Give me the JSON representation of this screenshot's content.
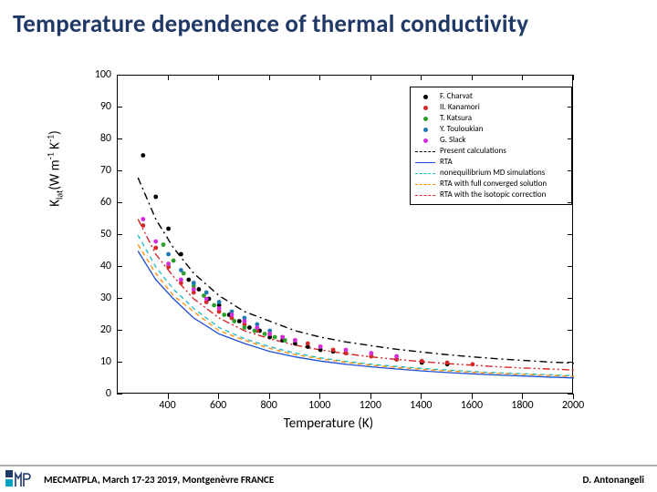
{
  "title": "Temperature dependence of thermal conductivity",
  "footer": {
    "left": "MECMATPLA, March 17-23 2019, Montgenèvre FRANCE",
    "right": "D. Antonangeli"
  },
  "chart": {
    "type": "scatter-line",
    "xlabel": "Temperature (K)",
    "ylabel_html": "K<sub>lat</sub>(W m<sup>-1</sup> K<sup>-1</sup>)",
    "xlim": [
      200,
      2000
    ],
    "ylim": [
      0,
      100
    ],
    "xticks": [
      400,
      600,
      800,
      1000,
      1200,
      1400,
      1600,
      1800,
      2000
    ],
    "yticks": [
      0,
      10,
      20,
      30,
      40,
      50,
      60,
      70,
      80,
      90,
      100
    ],
    "background": "#ffffff",
    "axis_color": "#000000",
    "tick_fontsize": 12,
    "label_fontsize": 15,
    "legend": {
      "items": [
        {
          "type": "scatter",
          "label": "F. Charvat",
          "color": "#000000"
        },
        {
          "type": "scatter",
          "label": "II. Kanamori",
          "color": "#d62728"
        },
        {
          "type": "scatter",
          "label": "T. Katsura",
          "color": "#2ca02c"
        },
        {
          "type": "scatter",
          "label": "Y. Touloukian",
          "color": "#1f77b4"
        },
        {
          "type": "scatter",
          "label": "G. Slack",
          "color": "#d62ddc"
        },
        {
          "type": "line",
          "label": "Present calculations",
          "color": "#000000",
          "dash": "dash-dot"
        },
        {
          "type": "line",
          "label": "RTA",
          "color": "#1f4fd6",
          "dash": "solid"
        },
        {
          "type": "line",
          "label": "nonequilibrium MD simulations",
          "color": "#17bac9",
          "dash": "dash"
        },
        {
          "type": "line",
          "label": "RTA with full converged solution",
          "color": "#ff8c00",
          "dash": "dash"
        },
        {
          "type": "line",
          "label": "RTA with the isotopic correction",
          "color": "#d62728",
          "dash": "dash-dot-dot"
        }
      ]
    },
    "series": {
      "scatter": [
        {
          "name": "F. Charvat",
          "color": "#000000",
          "points": [
            [
              300,
              75
            ],
            [
              350,
              62
            ],
            [
              400,
              52
            ],
            [
              450,
              44
            ],
            [
              480,
              36
            ],
            [
              520,
              33
            ],
            [
              560,
              30
            ],
            [
              600,
              28
            ],
            [
              640,
              25
            ],
            [
              680,
              23
            ],
            [
              720,
              21
            ],
            [
              760,
              20
            ],
            [
              800,
              18
            ],
            [
              850,
              17
            ],
            [
              900,
              16
            ],
            [
              950,
              15
            ],
            [
              1000,
              14
            ],
            [
              1050,
              13.5
            ],
            [
              1100,
              13
            ],
            [
              1200,
              12
            ],
            [
              1300,
              11
            ],
            [
              1400,
              10
            ],
            [
              1500,
              9.5
            ]
          ]
        },
        {
          "name": "II. Kanamori",
          "color": "#d62728",
          "points": [
            [
              300,
              53
            ],
            [
              350,
              46
            ],
            [
              400,
              40
            ],
            [
              450,
              35
            ],
            [
              500,
              32
            ],
            [
              550,
              29
            ],
            [
              600,
              26
            ],
            [
              650,
              24
            ],
            [
              700,
              22
            ],
            [
              750,
              20
            ],
            [
              800,
              19
            ],
            [
              850,
              18
            ],
            [
              900,
              17
            ],
            [
              950,
              16
            ],
            [
              1000,
              15
            ],
            [
              1050,
              14
            ],
            [
              1100,
              13
            ],
            [
              1200,
              12
            ],
            [
              1300,
              11
            ],
            [
              1400,
              10.5
            ],
            [
              1500,
              10
            ],
            [
              1600,
              9.5
            ]
          ]
        },
        {
          "name": "T. Katsura",
          "color": "#2ca02c",
          "points": [
            [
              380,
              47
            ],
            [
              420,
              42
            ],
            [
              460,
              38
            ],
            [
              500,
              34
            ],
            [
              540,
              31
            ],
            [
              580,
              28
            ],
            [
              620,
              25
            ],
            [
              660,
              23
            ],
            [
              700,
              21
            ],
            [
              740,
              20
            ],
            [
              780,
              19
            ],
            [
              820,
              18
            ],
            [
              860,
              17
            ]
          ]
        },
        {
          "name": "Y. Touloukian",
          "color": "#1f77b4",
          "points": [
            [
              400,
              44
            ],
            [
              450,
              39
            ],
            [
              500,
              35
            ],
            [
              550,
              32
            ],
            [
              600,
              29
            ],
            [
              650,
              26
            ],
            [
              700,
              24
            ],
            [
              750,
              22
            ],
            [
              800,
              20
            ]
          ]
        },
        {
          "name": "G. Slack",
          "color": "#d62ddc",
          "points": [
            [
              300,
              55
            ],
            [
              350,
              48
            ],
            [
              400,
              41
            ],
            [
              450,
              36
            ],
            [
              500,
              33
            ],
            [
              550,
              30
            ],
            [
              600,
              27
            ],
            [
              650,
              25
            ],
            [
              700,
              23
            ],
            [
              750,
              21
            ],
            [
              800,
              19
            ],
            [
              850,
              18
            ],
            [
              900,
              17
            ],
            [
              1000,
              15
            ],
            [
              1100,
              14
            ],
            [
              1200,
              13
            ],
            [
              1300,
              12
            ]
          ]
        }
      ],
      "lines": [
        {
          "name": "Present calculations",
          "color": "#000000",
          "dash": "8 4 2 4",
          "width": 1.4,
          "points": [
            [
              280,
              68
            ],
            [
              350,
              55
            ],
            [
              420,
              46
            ],
            [
              500,
              38
            ],
            [
              600,
              31
            ],
            [
              700,
              26
            ],
            [
              800,
              23
            ],
            [
              900,
              20
            ],
            [
              1000,
              18
            ],
            [
              1100,
              16.5
            ],
            [
              1200,
              15.3
            ],
            [
              1300,
              14.2
            ],
            [
              1400,
              13.3
            ],
            [
              1500,
              12.5
            ],
            [
              1600,
              11.8
            ],
            [
              1700,
              11.2
            ],
            [
              1800,
              10.7
            ],
            [
              1900,
              10.2
            ],
            [
              2000,
              9.8
            ]
          ]
        },
        {
          "name": "RTA",
          "color": "#1f4fd6",
          "dash": "none",
          "width": 1.3,
          "points": [
            [
              280,
              45
            ],
            [
              350,
              36
            ],
            [
              420,
              30
            ],
            [
              500,
              24
            ],
            [
              600,
              19
            ],
            [
              700,
              16
            ],
            [
              800,
              13.5
            ],
            [
              900,
              11.8
            ],
            [
              1000,
              10.5
            ],
            [
              1100,
              9.5
            ],
            [
              1200,
              8.7
            ],
            [
              1300,
              8.0
            ],
            [
              1400,
              7.4
            ],
            [
              1500,
              6.9
            ],
            [
              1600,
              6.5
            ],
            [
              1700,
              6.1
            ],
            [
              1800,
              5.8
            ],
            [
              1900,
              5.5
            ],
            [
              2000,
              5.2
            ]
          ]
        },
        {
          "name": "nonequilibrium MD",
          "color": "#17bac9",
          "dash": "5 4",
          "width": 1.3,
          "points": [
            [
              280,
              50
            ],
            [
              350,
              40
            ],
            [
              420,
              33
            ],
            [
              500,
              27
            ],
            [
              600,
              21
            ],
            [
              700,
              17.5
            ],
            [
              800,
              15
            ],
            [
              900,
              13
            ],
            [
              1000,
              11.5
            ],
            [
              1100,
              10.4
            ],
            [
              1200,
              9.5
            ],
            [
              1300,
              8.8
            ],
            [
              1400,
              8.2
            ],
            [
              1500,
              7.7
            ],
            [
              1600,
              7.2
            ],
            [
              1700,
              6.8
            ],
            [
              1800,
              6.5
            ],
            [
              1900,
              6.2
            ],
            [
              2000,
              5.9
            ]
          ]
        },
        {
          "name": "RTA full converged",
          "color": "#ff8c00",
          "dash": "5 4",
          "width": 1.3,
          "points": [
            [
              280,
              47
            ],
            [
              350,
              38
            ],
            [
              420,
              31
            ],
            [
              500,
              26
            ],
            [
              600,
              20
            ],
            [
              700,
              17
            ],
            [
              800,
              14.5
            ],
            [
              900,
              12.5
            ],
            [
              1000,
              11.2
            ],
            [
              1100,
              10.1
            ],
            [
              1200,
              9.2
            ],
            [
              1300,
              8.5
            ],
            [
              1400,
              7.9
            ],
            [
              1500,
              7.4
            ],
            [
              1600,
              7.0
            ],
            [
              1700,
              6.6
            ],
            [
              1800,
              6.3
            ],
            [
              1900,
              6.0
            ],
            [
              2000,
              5.7
            ]
          ]
        },
        {
          "name": "RTA isotopic",
          "color": "#d62728",
          "dash": "8 3 2 3 2 3",
          "width": 1.4,
          "points": [
            [
              280,
              55
            ],
            [
              350,
              44
            ],
            [
              420,
              37
            ],
            [
              500,
              30
            ],
            [
              600,
              24
            ],
            [
              700,
              20
            ],
            [
              800,
              17.5
            ],
            [
              900,
              15.5
            ],
            [
              1000,
              14
            ],
            [
              1100,
              12.8
            ],
            [
              1200,
              11.8
            ],
            [
              1300,
              11
            ],
            [
              1400,
              10.3
            ],
            [
              1500,
              9.7
            ],
            [
              1600,
              9.2
            ],
            [
              1700,
              8.7
            ],
            [
              1800,
              8.3
            ],
            [
              1900,
              8.0
            ],
            [
              2000,
              7.7
            ]
          ]
        }
      ]
    }
  },
  "logo": {
    "bg": "#ffffff",
    "accent1": "#1f3866",
    "accent2": "#00a3c4"
  }
}
